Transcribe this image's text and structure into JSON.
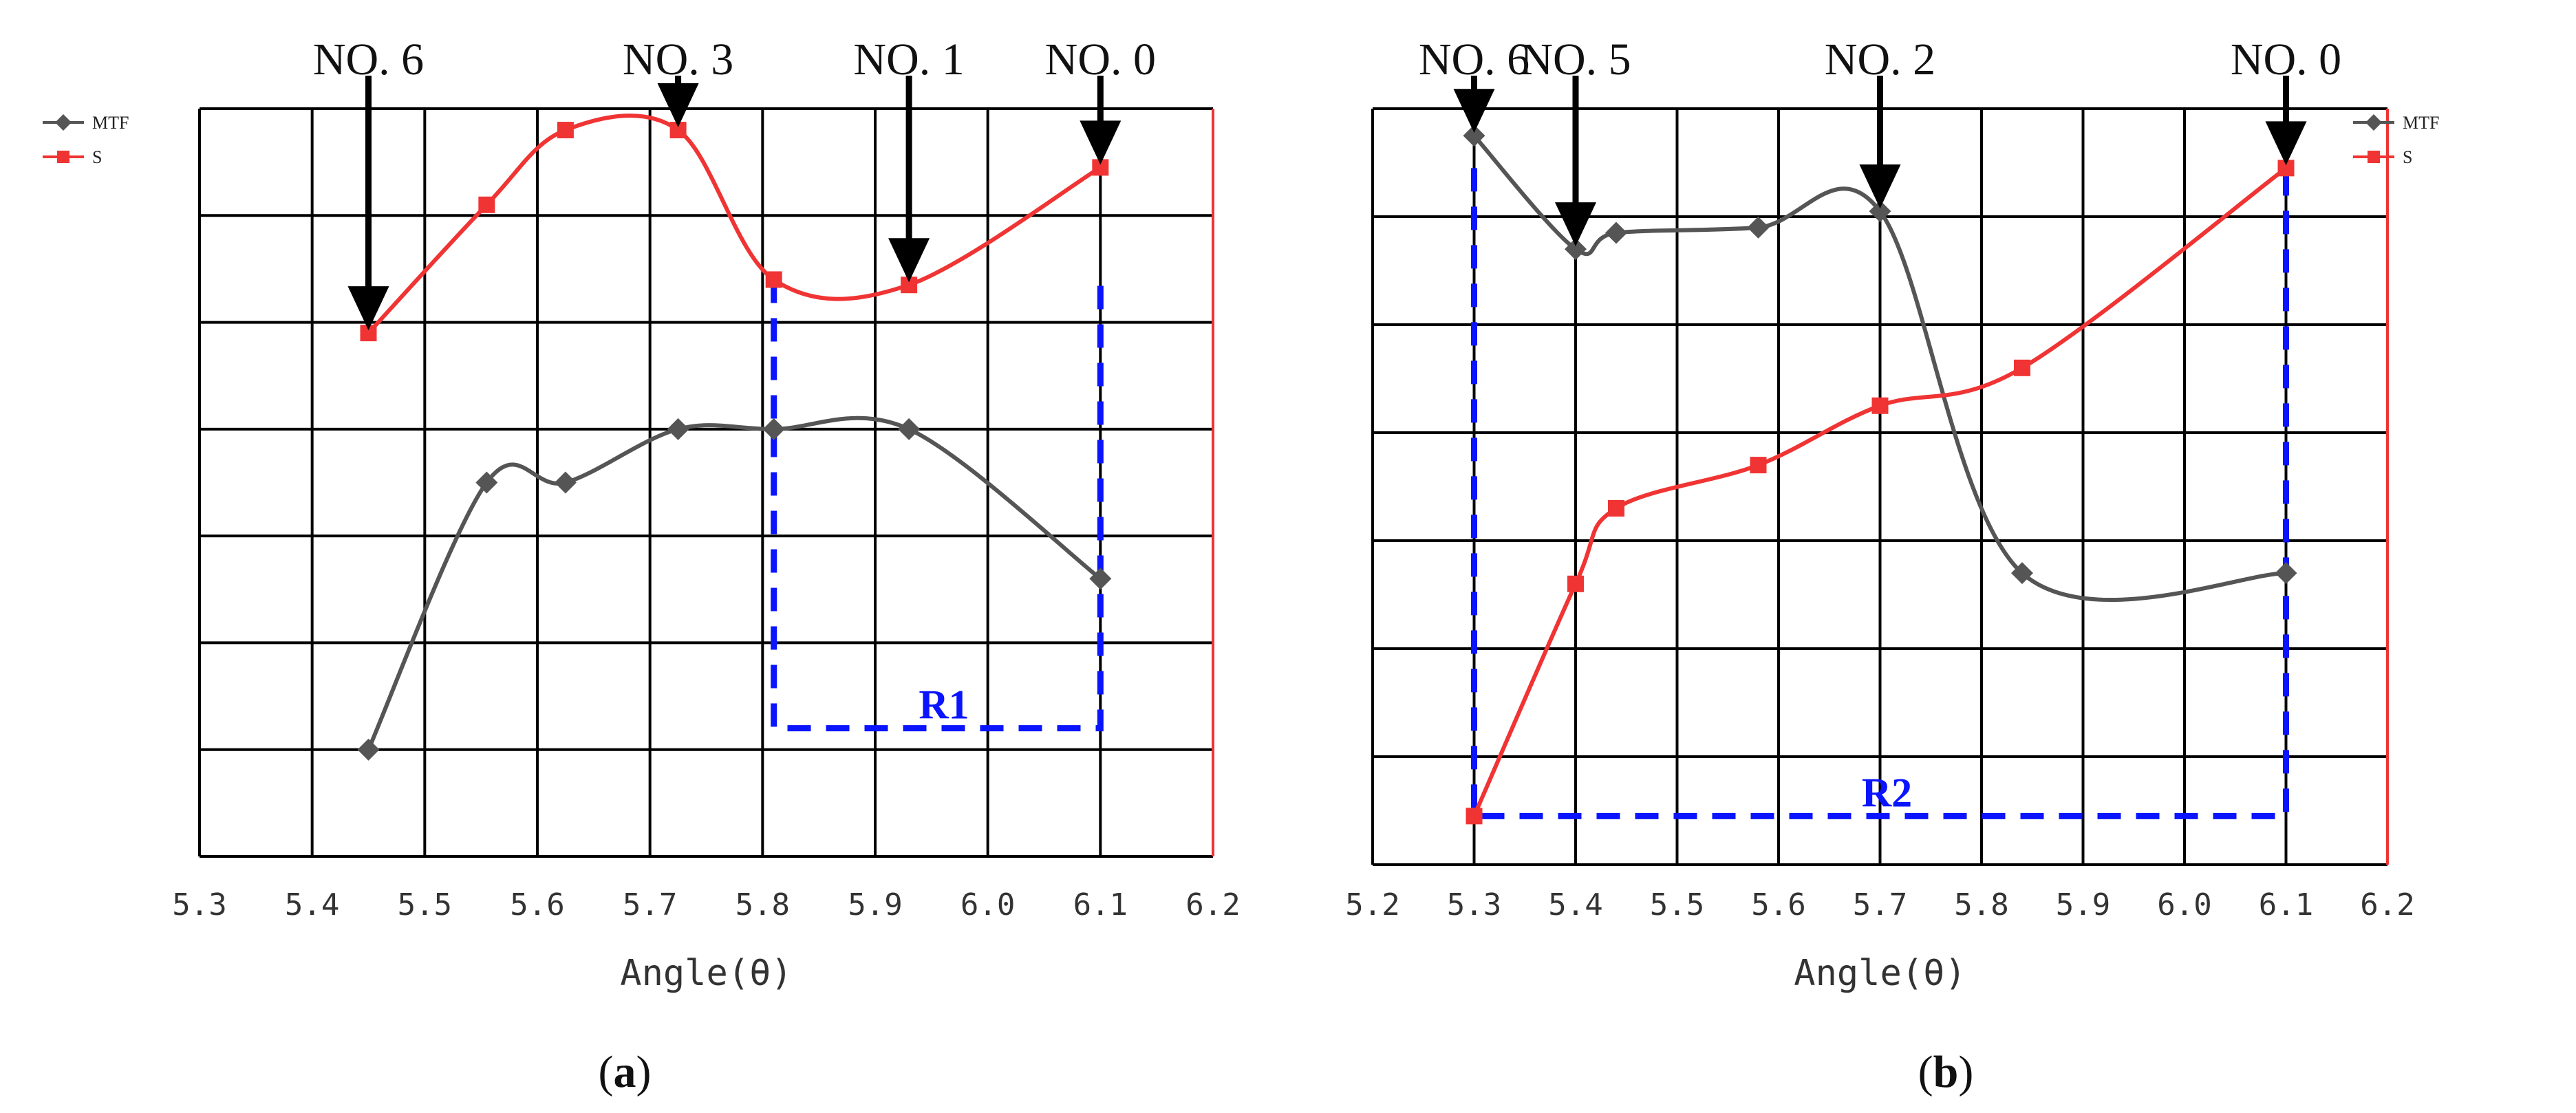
{
  "chart_data": [
    {
      "type": "line",
      "panel": "a",
      "caption": {
        "open": "(",
        "letter": "a",
        "close": ")"
      },
      "xlabel": "Angle(θ)",
      "ylabel": "",
      "xlim": [
        5.3,
        6.2
      ],
      "ylim": [
        0,
        7
      ],
      "x_tick_labels": [
        "5.3",
        "5.4",
        "5.5",
        "5.6",
        "5.7",
        "5.8",
        "5.9",
        "6.0",
        "6.1",
        "6.2"
      ],
      "grid": true,
      "legend": {
        "position": "top-left",
        "entries": [
          "MTF",
          "S"
        ]
      },
      "series": [
        {
          "name": "MTF",
          "color": "#555555",
          "marker": "diamond",
          "x": [
            5.45,
            5.555,
            5.625,
            5.725,
            5.81,
            5.93,
            6.1
          ],
          "y": [
            1.0,
            3.5,
            3.5,
            4.0,
            4.0,
            4.0,
            2.6
          ]
        },
        {
          "name": "S",
          "color": "#f03434",
          "marker": "square",
          "x": [
            5.45,
            5.555,
            5.625,
            5.725,
            5.81,
            5.93,
            6.1
          ],
          "y": [
            4.9,
            6.1,
            6.8,
            6.8,
            5.4,
            5.35,
            6.45
          ]
        }
      ],
      "annotations": [
        {
          "text": "NO. 6",
          "x": 5.45,
          "y": 4.9
        },
        {
          "text": "NO. 3",
          "x": 5.725,
          "y": 6.8
        },
        {
          "text": "NO. 1",
          "x": 5.93,
          "y": 5.35
        },
        {
          "text": "NO. 0",
          "x": 6.1,
          "y": 6.45
        }
      ],
      "region": {
        "label": "R1",
        "x": [
          5.81,
          6.1
        ],
        "y": [
          1.2,
          5.4
        ]
      }
    },
    {
      "type": "line",
      "panel": "b",
      "caption": {
        "open": "(",
        "letter": "b",
        "close": ")"
      },
      "xlabel": "Angle(θ)",
      "ylabel": "",
      "xlim": [
        5.2,
        6.2
      ],
      "ylim": [
        0,
        7
      ],
      "x_tick_labels": [
        "5.2",
        "5.3",
        "5.4",
        "5.5",
        "5.6",
        "5.7",
        "5.8",
        "5.9",
        "6.0",
        "6.1",
        "6.2"
      ],
      "grid": true,
      "legend": {
        "position": "top-right",
        "entries": [
          "MTF",
          "S"
        ]
      },
      "series": [
        {
          "name": "MTF",
          "color": "#555555",
          "marker": "diamond",
          "x": [
            5.3,
            5.4,
            5.44,
            5.58,
            5.7,
            5.84,
            6.1
          ],
          "y": [
            6.75,
            5.7,
            5.85,
            5.9,
            6.05,
            2.7,
            2.7
          ]
        },
        {
          "name": "S",
          "color": "#f03434",
          "marker": "square",
          "x": [
            5.3,
            5.4,
            5.44,
            5.58,
            5.7,
            5.84,
            6.1
          ],
          "y": [
            0.45,
            2.6,
            3.3,
            3.7,
            4.25,
            4.6,
            6.45
          ]
        }
      ],
      "annotations": [
        {
          "text": "NO. 6",
          "x": 5.3,
          "y": 6.75
        },
        {
          "text": "NO. 5",
          "x": 5.4,
          "y": 5.7
        },
        {
          "text": "NO. 2",
          "x": 5.7,
          "y": 6.05
        },
        {
          "text": "NO. 0",
          "x": 6.1,
          "y": 6.45
        }
      ],
      "region": {
        "label": "R2",
        "x": [
          5.3,
          6.1
        ],
        "y": [
          0.45,
          6.45
        ]
      }
    }
  ]
}
